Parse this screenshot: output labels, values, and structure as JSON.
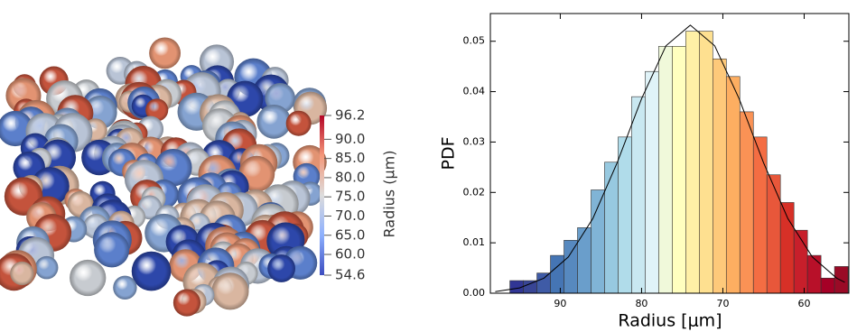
{
  "chart_data": [
    {
      "type": "colorbar",
      "label": "Radius (μm)",
      "clim": [
        54.6,
        96.2
      ],
      "ticks": [
        96.2,
        {
          "value": 90,
          "label": "90.0"
        },
        {
          "value": 85,
          "label": "85.0"
        },
        {
          "value": 80,
          "label": "80.0"
        },
        {
          "value": 75,
          "label": "75.0"
        },
        {
          "value": 70,
          "label": "70.0"
        },
        {
          "value": 65,
          "label": "65.0"
        },
        {
          "value": 60,
          "label": "60.0"
        },
        54.6
      ],
      "colormap": [
        "#3b4cc0",
        "#8db0fe",
        "#dddcdc",
        "#f4987a",
        "#b40426"
      ]
    },
    {
      "type": "histogram",
      "xlabel": "Radius [μm]",
      "ylabel": "PDF",
      "bins": [
        96.2,
        94.536,
        92.872,
        91.208,
        89.544,
        87.88,
        86.216,
        84.552,
        82.888,
        81.224,
        79.56,
        77.896,
        76.232,
        74.568,
        72.904,
        71.24,
        69.576,
        67.912,
        66.248,
        64.584,
        62.92,
        61.256,
        59.592,
        57.928,
        56.264,
        54.6
      ],
      "values": [
        0.0025,
        0.0025,
        0.004,
        0.0075,
        0.0105,
        0.013,
        0.0205,
        0.026,
        0.031,
        0.039,
        0.044,
        0.049,
        0.049,
        0.052,
        0.052,
        0.0465,
        0.043,
        0.036,
        0.031,
        0.0235,
        0.018,
        0.0125,
        0.0075,
        0.003,
        0.0053
      ],
      "colors": [
        "#313695",
        "#384595",
        "#3f5ba6",
        "#4575b4",
        "#5789bf",
        "#6a9ecb",
        "#80b4d6",
        "#97c9e0",
        "#b0dcea",
        "#c9e8f1",
        "#e0f3f8",
        "#f0f9da",
        "#ffffbf",
        "#fff0a6",
        "#fee090",
        "#fec97a",
        "#fdae61",
        "#fa9255",
        "#f46d43",
        "#e8573a",
        "#d73027",
        "#c71f2b",
        "#b81029",
        "#a50026",
        "#9a0a26"
      ],
      "fit": {
        "x": [
          98,
          95,
          92,
          89,
          86,
          83,
          80,
          77,
          74,
          71,
          68,
          65,
          62,
          59,
          56,
          55
        ],
        "values": [
          0.00032,
          0.00105,
          0.00299,
          0.0072,
          0.0148,
          0.0259,
          0.0386,
          0.0491,
          0.0532,
          0.0491,
          0.0386,
          0.0259,
          0.0148,
          0.0072,
          0.00299,
          0.00215
        ],
        "color": "#000000"
      },
      "xlim": [
        98.6,
        54.5
      ],
      "ylim": [
        0,
        0.0555
      ],
      "xticks": [
        90,
        80,
        70,
        60
      ],
      "yticks": [
        {
          "value": 0,
          "label": "0.00"
        },
        {
          "value": 0.01,
          "label": "0.01"
        },
        {
          "value": 0.02,
          "label": "0.02"
        },
        {
          "value": 0.03,
          "label": "0.03"
        },
        {
          "value": 0.04,
          "label": "0.04"
        },
        {
          "value": 0.05,
          "label": "0.05"
        }
      ]
    }
  ]
}
